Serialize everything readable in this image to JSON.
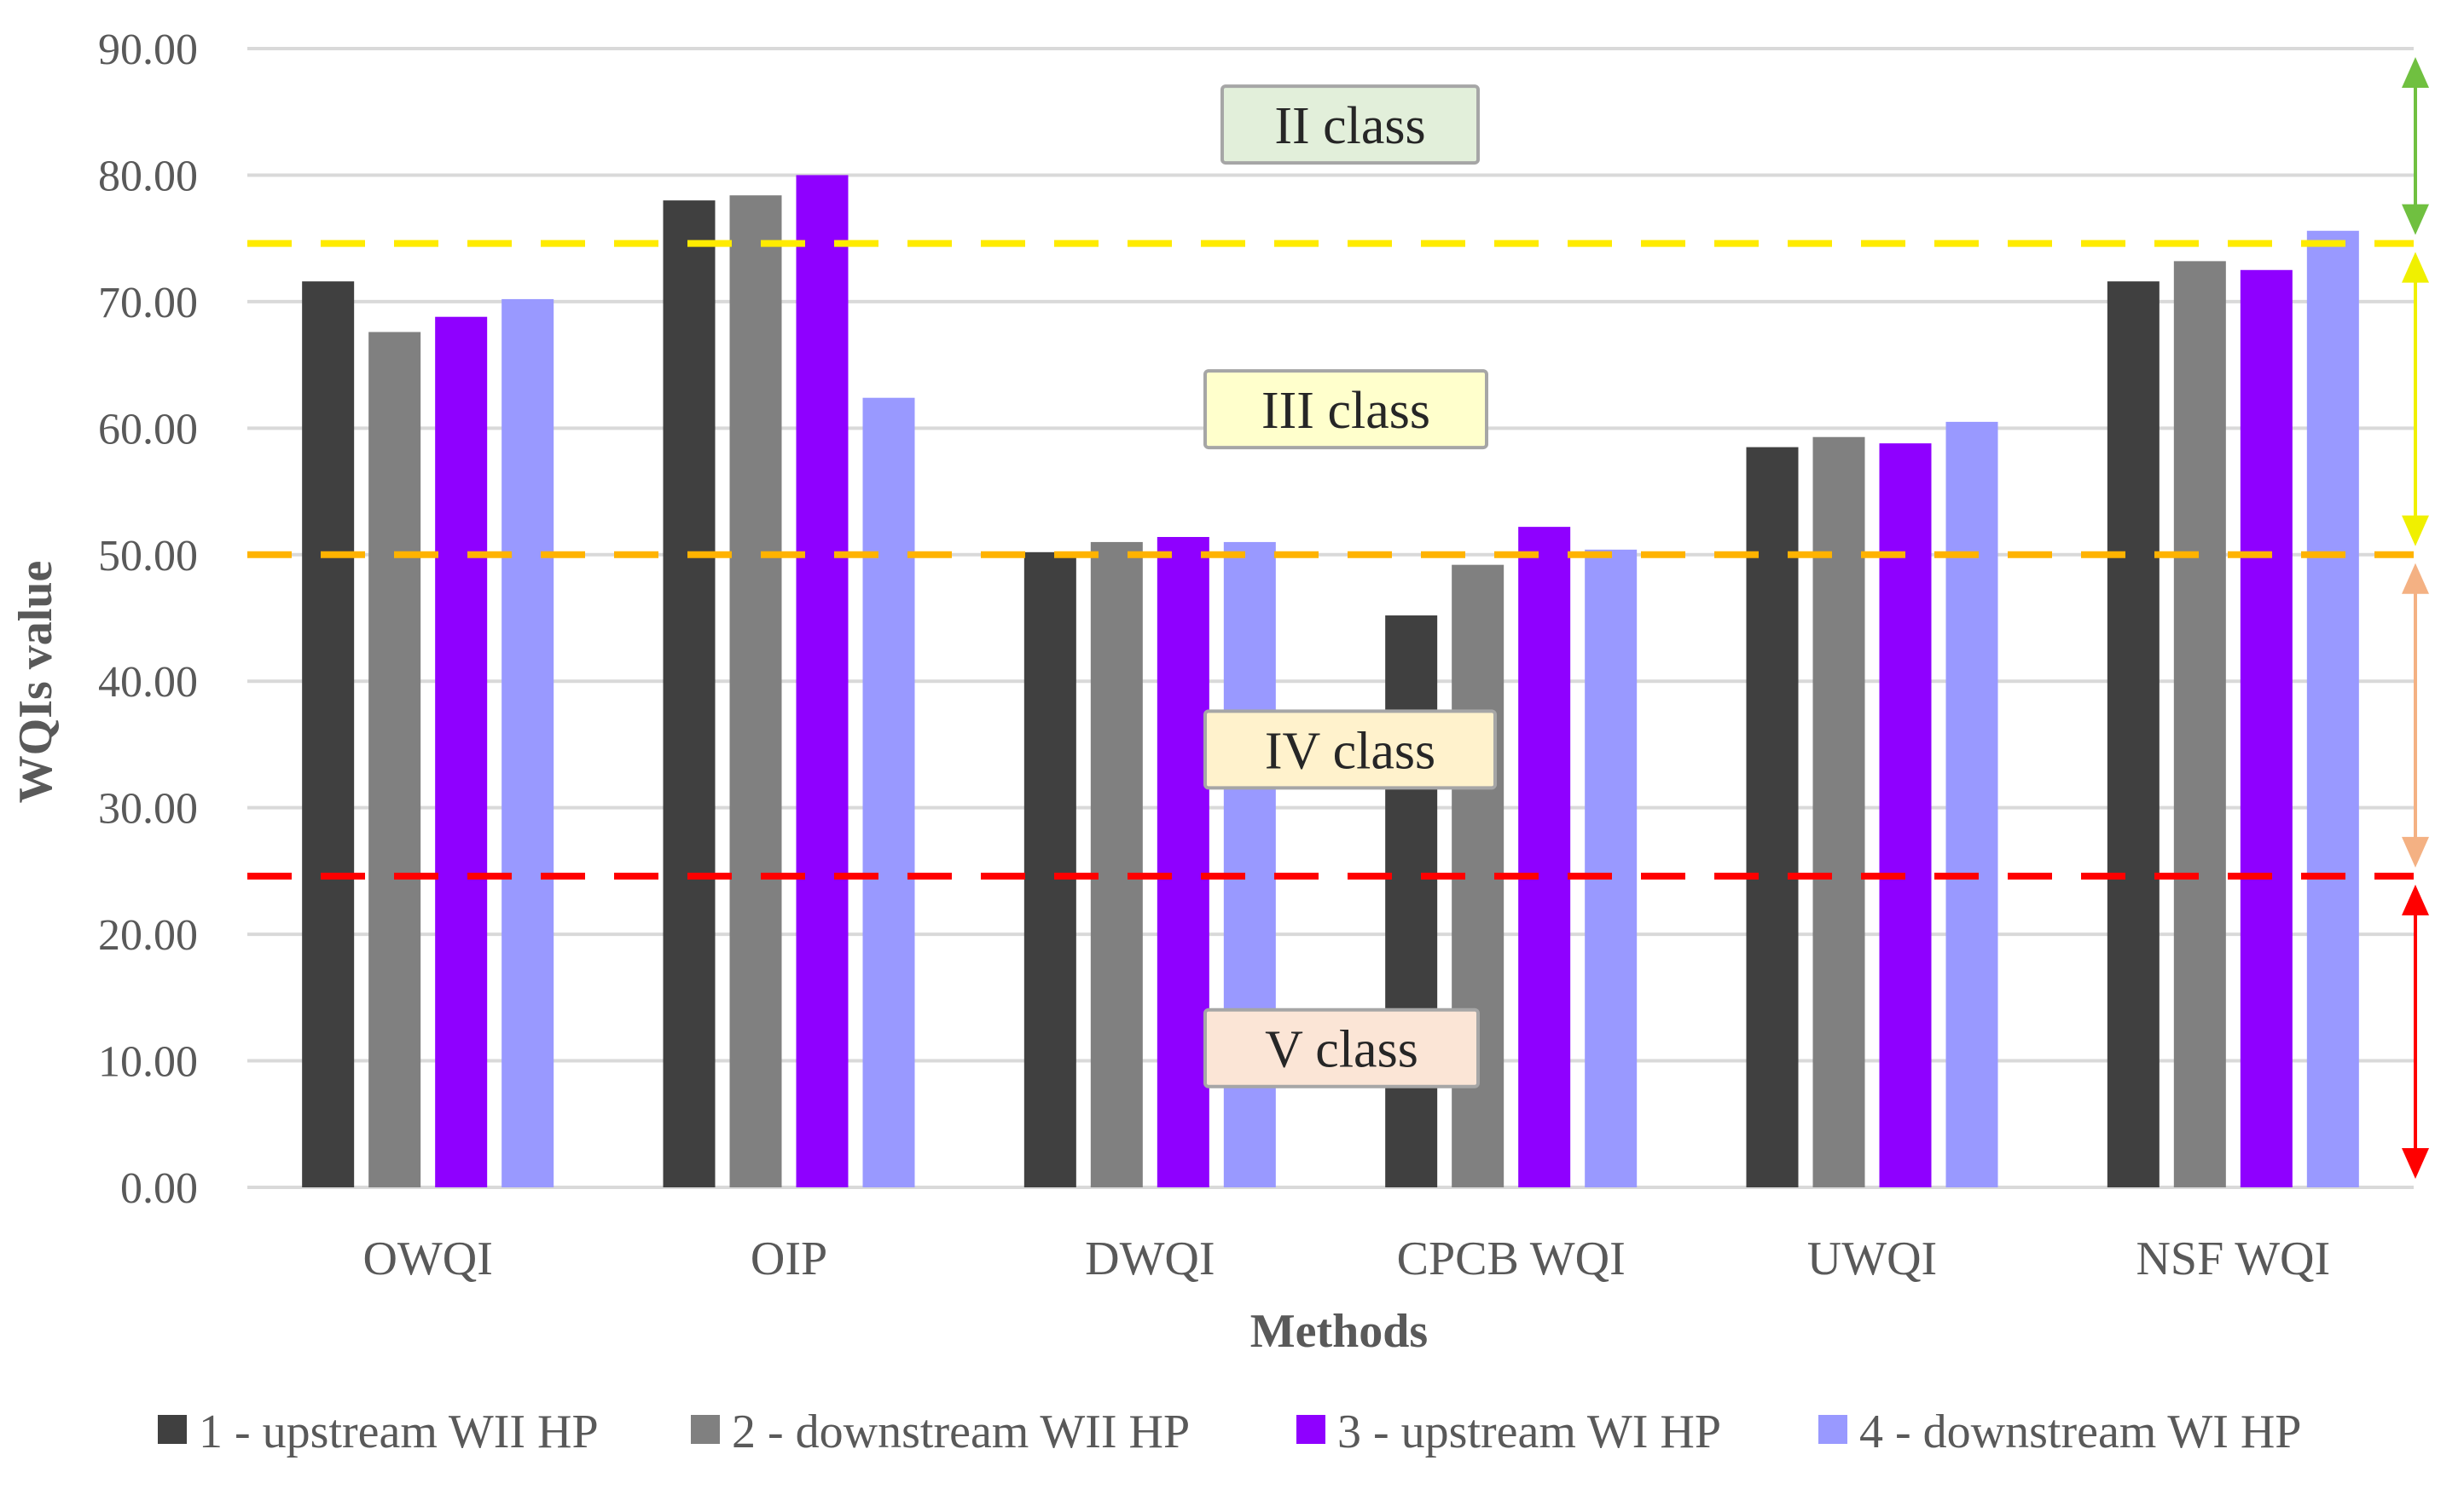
{
  "chart_data": {
    "type": "bar",
    "title": "",
    "xlabel": "Methods",
    "ylabel": "WQIs value",
    "ylim": [
      0,
      90
    ],
    "yticks": [
      "0.00",
      "10.00",
      "20.00",
      "30.00",
      "40.00",
      "50.00",
      "60.00",
      "70.00",
      "80.00",
      "90.00"
    ],
    "grid": true,
    "legend_position": "bottom",
    "categories": [
      "OWQI",
      "OIP",
      "DWQI",
      "CPCB WQI",
      "UWQI",
      "NSF WQI"
    ],
    "series": [
      {
        "name": "1 - upstream WII HP",
        "color": "#404040",
        "values": [
          71.6,
          78.0,
          50.2,
          45.2,
          58.5,
          71.6
        ]
      },
      {
        "name": "2 - downstream WII HP",
        "color": "#808080",
        "values": [
          67.6,
          78.4,
          51.0,
          49.2,
          59.3,
          73.2
        ]
      },
      {
        "name": "3 - upstream WI HP",
        "color": "#8f00ff",
        "values": [
          68.8,
          80.0,
          51.4,
          52.2,
          58.8,
          72.5
        ]
      },
      {
        "name": "4 - downstream WI HP",
        "color": "#9999ff",
        "values": [
          70.2,
          62.4,
          51.0,
          50.4,
          60.5,
          75.6
        ]
      }
    ],
    "thresholds": [
      {
        "value": 74.6,
        "color": "#ffeb00"
      },
      {
        "value": 50.0,
        "color": "#ffb300"
      },
      {
        "value": 24.6,
        "color": "#ff0000"
      }
    ],
    "class_bands": [
      {
        "label": "II class",
        "from": 74.6,
        "to": 90.0,
        "label_at": 84.0,
        "arrow_color": "#70c040",
        "box_fill": "#e2efda",
        "box_stroke": "#a6a6a6"
      },
      {
        "label": "III class",
        "from": 50.0,
        "to": 74.6,
        "label_at": 61.5,
        "arrow_color": "#f0f000",
        "box_fill": "#ffffcc",
        "box_stroke": "#a6a6a6"
      },
      {
        "label": "IV class",
        "from": 24.6,
        "to": 50.0,
        "label_at": 34.6,
        "arrow_color": "#f4b183",
        "box_fill": "#fff2cc",
        "box_stroke": "#a6a6a6"
      },
      {
        "label": "V class",
        "from": 0.0,
        "to": 24.6,
        "label_at": 11.0,
        "arrow_color": "#ff0000",
        "box_fill": "#fbe5d6",
        "box_stroke": "#a6a6a6"
      }
    ]
  }
}
